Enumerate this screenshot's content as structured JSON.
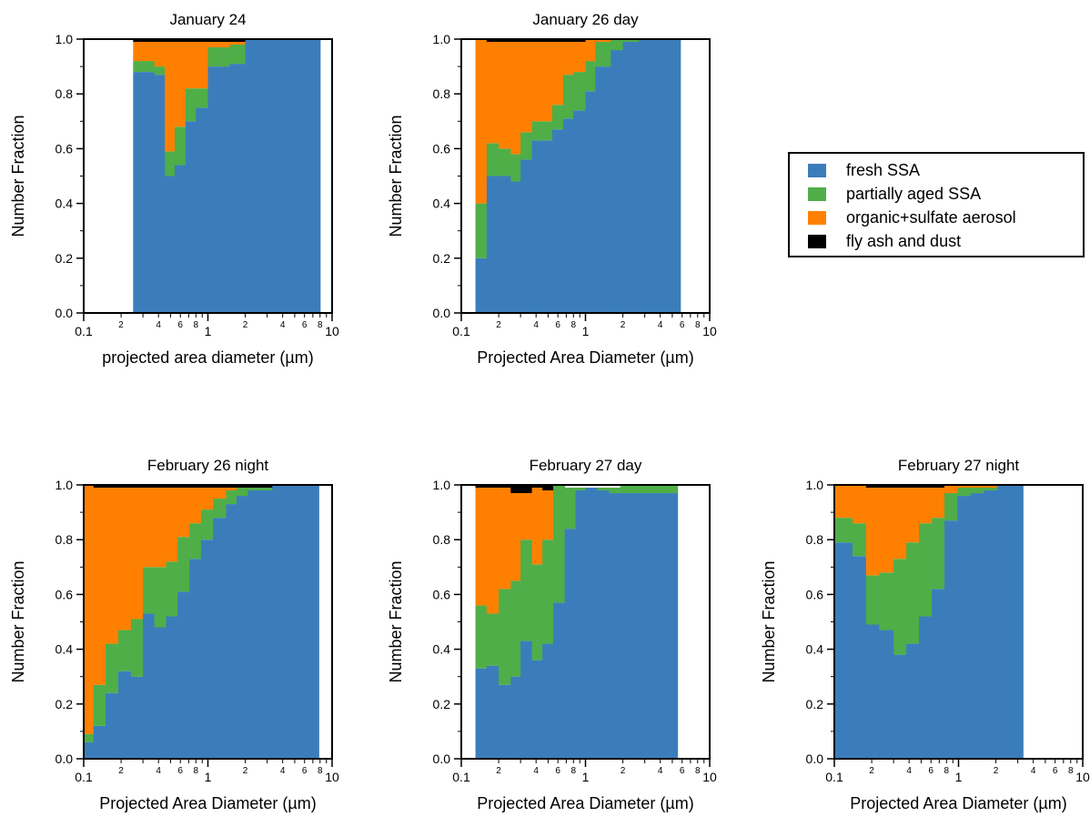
{
  "colors": {
    "fresh": "#3B7DBB",
    "partial": "#4FAE48",
    "organic": "#FF8000",
    "dust": "#000000"
  },
  "legend": {
    "items": [
      {
        "key": "fresh",
        "label": "fresh SSA"
      },
      {
        "key": "partial",
        "label": "partially aged SSA"
      },
      {
        "key": "organic",
        "label": "organic+sulfate aerosol"
      },
      {
        "key": "dust",
        "label": "fly ash and dust"
      }
    ]
  },
  "chart_data": [
    {
      "type": "bar",
      "stacked": true,
      "title": "January 24",
      "xlabel": "projected area diameter (µm)",
      "ylabel": "Number Fraction",
      "xscale": "log",
      "xlim": [
        0.1,
        10
      ],
      "ylim": [
        0,
        1
      ],
      "y_ticks": [
        "0.0",
        "0.2",
        "0.4",
        "0.6",
        "0.8",
        "1.0"
      ],
      "bin_edges": [
        0.25,
        0.3,
        0.37,
        0.45,
        0.54,
        0.66,
        0.8,
        1.0,
        1.5,
        2.0,
        2.4,
        8.0
      ],
      "series": [
        {
          "name": "fresh SSA",
          "key": "fresh",
          "values": [
            0.88,
            0.88,
            0.87,
            0.5,
            0.54,
            0.7,
            0.75,
            0.9,
            0.91,
            1.0,
            1.0
          ]
        },
        {
          "name": "partially aged SSA",
          "key": "partial",
          "values": [
            0.04,
            0.04,
            0.03,
            0.09,
            0.14,
            0.12,
            0.07,
            0.07,
            0.07,
            0.0,
            0.0
          ]
        },
        {
          "name": "organic+sulfate aerosol",
          "key": "organic",
          "values": [
            0.07,
            0.07,
            0.09,
            0.4,
            0.31,
            0.17,
            0.17,
            0.02,
            0.01,
            0.0,
            0.0
          ]
        },
        {
          "name": "fly ash and dust",
          "key": "dust",
          "values": [
            0.01,
            0.01,
            0.01,
            0.01,
            0.01,
            0.01,
            0.01,
            0.01,
            0.01,
            0.0,
            0.0
          ]
        }
      ]
    },
    {
      "type": "bar",
      "stacked": true,
      "title": "January 26 day",
      "xlabel": "Projected Area Diameter (µm)",
      "ylabel": "Number Fraction",
      "xscale": "log",
      "xlim": [
        0.1,
        10
      ],
      "ylim": [
        0,
        1
      ],
      "y_ticks": [
        "0.0",
        "0.2",
        "0.4",
        "0.6",
        "0.8",
        "1.0"
      ],
      "bin_edges": [
        0.13,
        0.16,
        0.2,
        0.25,
        0.3,
        0.37,
        0.45,
        0.54,
        0.66,
        0.8,
        1.0,
        1.2,
        1.6,
        2.0,
        2.7,
        3.5,
        4.5,
        5.8
      ],
      "series": [
        {
          "name": "fresh SSA",
          "key": "fresh",
          "values": [
            0.2,
            0.5,
            0.5,
            0.48,
            0.56,
            0.63,
            0.63,
            0.67,
            0.71,
            0.74,
            0.81,
            0.9,
            0.96,
            0.99,
            1.0,
            1.0,
            1.0
          ]
        },
        {
          "name": "partially aged SSA",
          "key": "partial",
          "values": [
            0.2,
            0.12,
            0.1,
            0.1,
            0.1,
            0.07,
            0.07,
            0.09,
            0.16,
            0.14,
            0.11,
            0.09,
            0.04,
            0.01,
            0.0,
            0.0,
            0.0
          ]
        },
        {
          "name": "organic+sulfate aerosol",
          "key": "organic",
          "values": [
            0.6,
            0.37,
            0.39,
            0.41,
            0.33,
            0.29,
            0.29,
            0.23,
            0.12,
            0.11,
            0.08,
            0.01,
            0.0,
            0.0,
            0.0,
            0.0,
            0.0
          ]
        },
        {
          "name": "fly ash and dust",
          "key": "dust",
          "values": [
            0.0,
            0.01,
            0.01,
            0.01,
            0.01,
            0.01,
            0.01,
            0.01,
            0.01,
            0.01,
            0.0,
            0.0,
            0.0,
            0.0,
            0.0,
            0.0,
            0.0
          ]
        }
      ]
    },
    {
      "type": "bar",
      "stacked": true,
      "title": "February 26 night",
      "xlabel": "Projected Area Diameter (µm)",
      "ylabel": "Number Fraction",
      "xscale": "log",
      "xlim": [
        0.1,
        10
      ],
      "ylim": [
        0,
        1
      ],
      "y_ticks": [
        "0.0",
        "0.2",
        "0.4",
        "0.6",
        "0.8",
        "1.0"
      ],
      "bin_edges": [
        0.1,
        0.12,
        0.15,
        0.19,
        0.24,
        0.3,
        0.37,
        0.46,
        0.57,
        0.71,
        0.88,
        1.1,
        1.4,
        1.7,
        2.1,
        2.6,
        3.3,
        4.1,
        5.1,
        6.3,
        7.8
      ],
      "series": [
        {
          "name": "fresh SSA",
          "key": "fresh",
          "values": [
            0.06,
            0.12,
            0.24,
            0.32,
            0.3,
            0.53,
            0.48,
            0.52,
            0.61,
            0.73,
            0.8,
            0.88,
            0.93,
            0.96,
            0.98,
            0.98,
            1.0,
            1.0,
            1.0,
            1.0
          ]
        },
        {
          "name": "partially aged SSA",
          "key": "partial",
          "values": [
            0.03,
            0.15,
            0.18,
            0.15,
            0.21,
            0.17,
            0.22,
            0.2,
            0.2,
            0.13,
            0.11,
            0.07,
            0.05,
            0.03,
            0.01,
            0.01,
            0.0,
            0.0,
            0.0,
            0.0
          ]
        },
        {
          "name": "organic+sulfate aerosol",
          "key": "organic",
          "values": [
            0.91,
            0.72,
            0.57,
            0.52,
            0.48,
            0.29,
            0.29,
            0.27,
            0.18,
            0.13,
            0.08,
            0.04,
            0.01,
            0.0,
            0.0,
            0.0,
            0.0,
            0.0,
            0.0,
            0.0
          ]
        },
        {
          "name": "fly ash and dust",
          "key": "dust",
          "values": [
            0.0,
            0.01,
            0.01,
            0.01,
            0.01,
            0.01,
            0.01,
            0.01,
            0.01,
            0.01,
            0.01,
            0.01,
            0.01,
            0.01,
            0.01,
            0.01,
            0.0,
            0.0,
            0.0,
            0.0
          ]
        }
      ]
    },
    {
      "type": "bar",
      "stacked": true,
      "title": "February 27 day",
      "xlabel": "Projected Area Diameter (µm)",
      "ylabel": "Number Fraction",
      "xscale": "log",
      "xlim": [
        0.1,
        10
      ],
      "ylim": [
        0,
        1
      ],
      "y_ticks": [
        "0.0",
        "0.2",
        "0.4",
        "0.6",
        "0.8",
        "1.0"
      ],
      "bin_edges": [
        0.13,
        0.16,
        0.2,
        0.25,
        0.3,
        0.37,
        0.45,
        0.55,
        0.68,
        0.83,
        1.0,
        1.25,
        1.55,
        1.9,
        2.4,
        2.9,
        3.6,
        4.4,
        5.5,
        6.8,
        8.5
      ],
      "series": [
        {
          "name": "fresh SSA",
          "key": "fresh",
          "values": [
            0.33,
            0.34,
            0.27,
            0.3,
            0.43,
            0.36,
            0.42,
            0.57,
            0.84,
            0.98,
            0.99,
            0.98,
            0.97,
            0.97,
            0.97,
            0.97,
            0.97,
            0.97,
            0.0,
            0.0
          ]
        },
        {
          "name": "partially aged SSA",
          "key": "partial",
          "values": [
            0.23,
            0.19,
            0.35,
            0.35,
            0.37,
            0.35,
            0.38,
            0.43,
            0.15,
            0.01,
            0.0,
            0.01,
            0.02,
            0.03,
            0.03,
            0.03,
            0.03,
            0.03,
            0.0,
            0.0
          ]
        },
        {
          "name": "organic+sulfate aerosol",
          "key": "organic",
          "values": [
            0.43,
            0.46,
            0.37,
            0.32,
            0.17,
            0.28,
            0.18,
            0.0,
            0.0,
            0.0,
            0.0,
            0.0,
            0.0,
            0.0,
            0.0,
            0.0,
            0.0,
            0.0,
            0.0,
            0.0
          ]
        },
        {
          "name": "fly ash and dust",
          "key": "dust",
          "values": [
            0.01,
            0.01,
            0.01,
            0.03,
            0.03,
            0.01,
            0.02,
            0.0,
            0.0,
            0.0,
            0.0,
            0.0,
            0.0,
            0.0,
            0.0,
            0.0,
            0.0,
            0.0,
            0.0,
            0.0
          ]
        }
      ]
    },
    {
      "type": "bar",
      "stacked": true,
      "title": "February 27 night",
      "xlabel": "Projected Area Diameter (µm)",
      "ylabel": "Number Fraction",
      "xscale": "log",
      "xlim": [
        0.1,
        10
      ],
      "ylim": [
        0,
        1
      ],
      "y_ticks": [
        "0.0",
        "0.2",
        "0.4",
        "0.6",
        "0.8",
        "1.0"
      ],
      "bin_edges": [
        0.1,
        0.14,
        0.18,
        0.23,
        0.3,
        0.38,
        0.48,
        0.61,
        0.77,
        0.98,
        1.25,
        1.6,
        2.05,
        2.6,
        3.3
      ],
      "series": [
        {
          "name": "fresh SSA",
          "key": "fresh",
          "values": [
            0.79,
            0.74,
            0.49,
            0.47,
            0.38,
            0.42,
            0.52,
            0.62,
            0.87,
            0.96,
            0.97,
            0.98,
            1.0,
            1.0
          ]
        },
        {
          "name": "partially aged SSA",
          "key": "partial",
          "values": [
            0.09,
            0.12,
            0.18,
            0.21,
            0.35,
            0.37,
            0.34,
            0.26,
            0.1,
            0.03,
            0.02,
            0.01,
            0.0,
            0.0
          ]
        },
        {
          "name": "organic+sulfate aerosol",
          "key": "organic",
          "values": [
            0.12,
            0.14,
            0.32,
            0.31,
            0.26,
            0.2,
            0.13,
            0.11,
            0.03,
            0.01,
            0.01,
            0.01,
            0.0,
            0.0
          ]
        },
        {
          "name": "fly ash and dust",
          "key": "dust",
          "values": [
            0.0,
            0.0,
            0.01,
            0.01,
            0.01,
            0.01,
            0.01,
            0.01,
            0.0,
            0.0,
            0.0,
            0.0,
            0.0,
            0.0
          ]
        }
      ]
    }
  ]
}
